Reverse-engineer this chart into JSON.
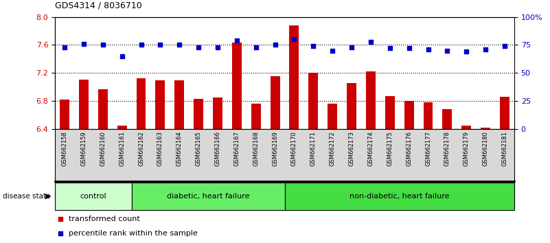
{
  "title": "GDS4314 / 8036710",
  "samples": [
    "GSM662158",
    "GSM662159",
    "GSM662160",
    "GSM662161",
    "GSM662162",
    "GSM662163",
    "GSM662164",
    "GSM662165",
    "GSM662166",
    "GSM662167",
    "GSM662168",
    "GSM662169",
    "GSM662170",
    "GSM662171",
    "GSM662172",
    "GSM662173",
    "GSM662174",
    "GSM662175",
    "GSM662176",
    "GSM662177",
    "GSM662178",
    "GSM662179",
    "GSM662180",
    "GSM662181"
  ],
  "bar_values": [
    6.82,
    7.1,
    6.97,
    6.45,
    7.12,
    7.09,
    7.09,
    6.83,
    6.85,
    7.63,
    6.76,
    7.15,
    7.88,
    7.2,
    6.76,
    7.05,
    7.22,
    6.87,
    6.8,
    6.78,
    6.68,
    6.45,
    6.42,
    6.86
  ],
  "percentile_values": [
    73,
    76,
    75,
    65,
    75,
    75,
    75,
    73,
    73,
    79,
    73,
    75,
    80,
    74,
    70,
    73,
    78,
    72,
    72,
    71,
    70,
    69,
    71,
    74
  ],
  "bar_color": "#cc0000",
  "percentile_color": "#0000cc",
  "ylim_left": [
    6.4,
    8.0
  ],
  "ylim_right": [
    0,
    100
  ],
  "yticks_left": [
    6.4,
    6.8,
    7.2,
    7.6,
    8.0
  ],
  "yticks_right": [
    0,
    25,
    50,
    75,
    100
  ],
  "ytick_labels_right": [
    "0",
    "25",
    "50",
    "75",
    "100%"
  ],
  "groups": [
    {
      "label": "control",
      "start": 0,
      "end": 4,
      "color": "#ccffcc"
    },
    {
      "label": "diabetic, heart failure",
      "start": 4,
      "end": 12,
      "color": "#66ee66"
    },
    {
      "label": "non-diabetic, heart failure",
      "start": 12,
      "end": 24,
      "color": "#44dd44"
    }
  ],
  "disease_state_label": "disease state",
  "legend_bar_label": "transformed count",
  "legend_pct_label": "percentile rank within the sample",
  "bg_plot": "white",
  "bg_sample": "#d8d8d8",
  "bar_width": 0.5
}
